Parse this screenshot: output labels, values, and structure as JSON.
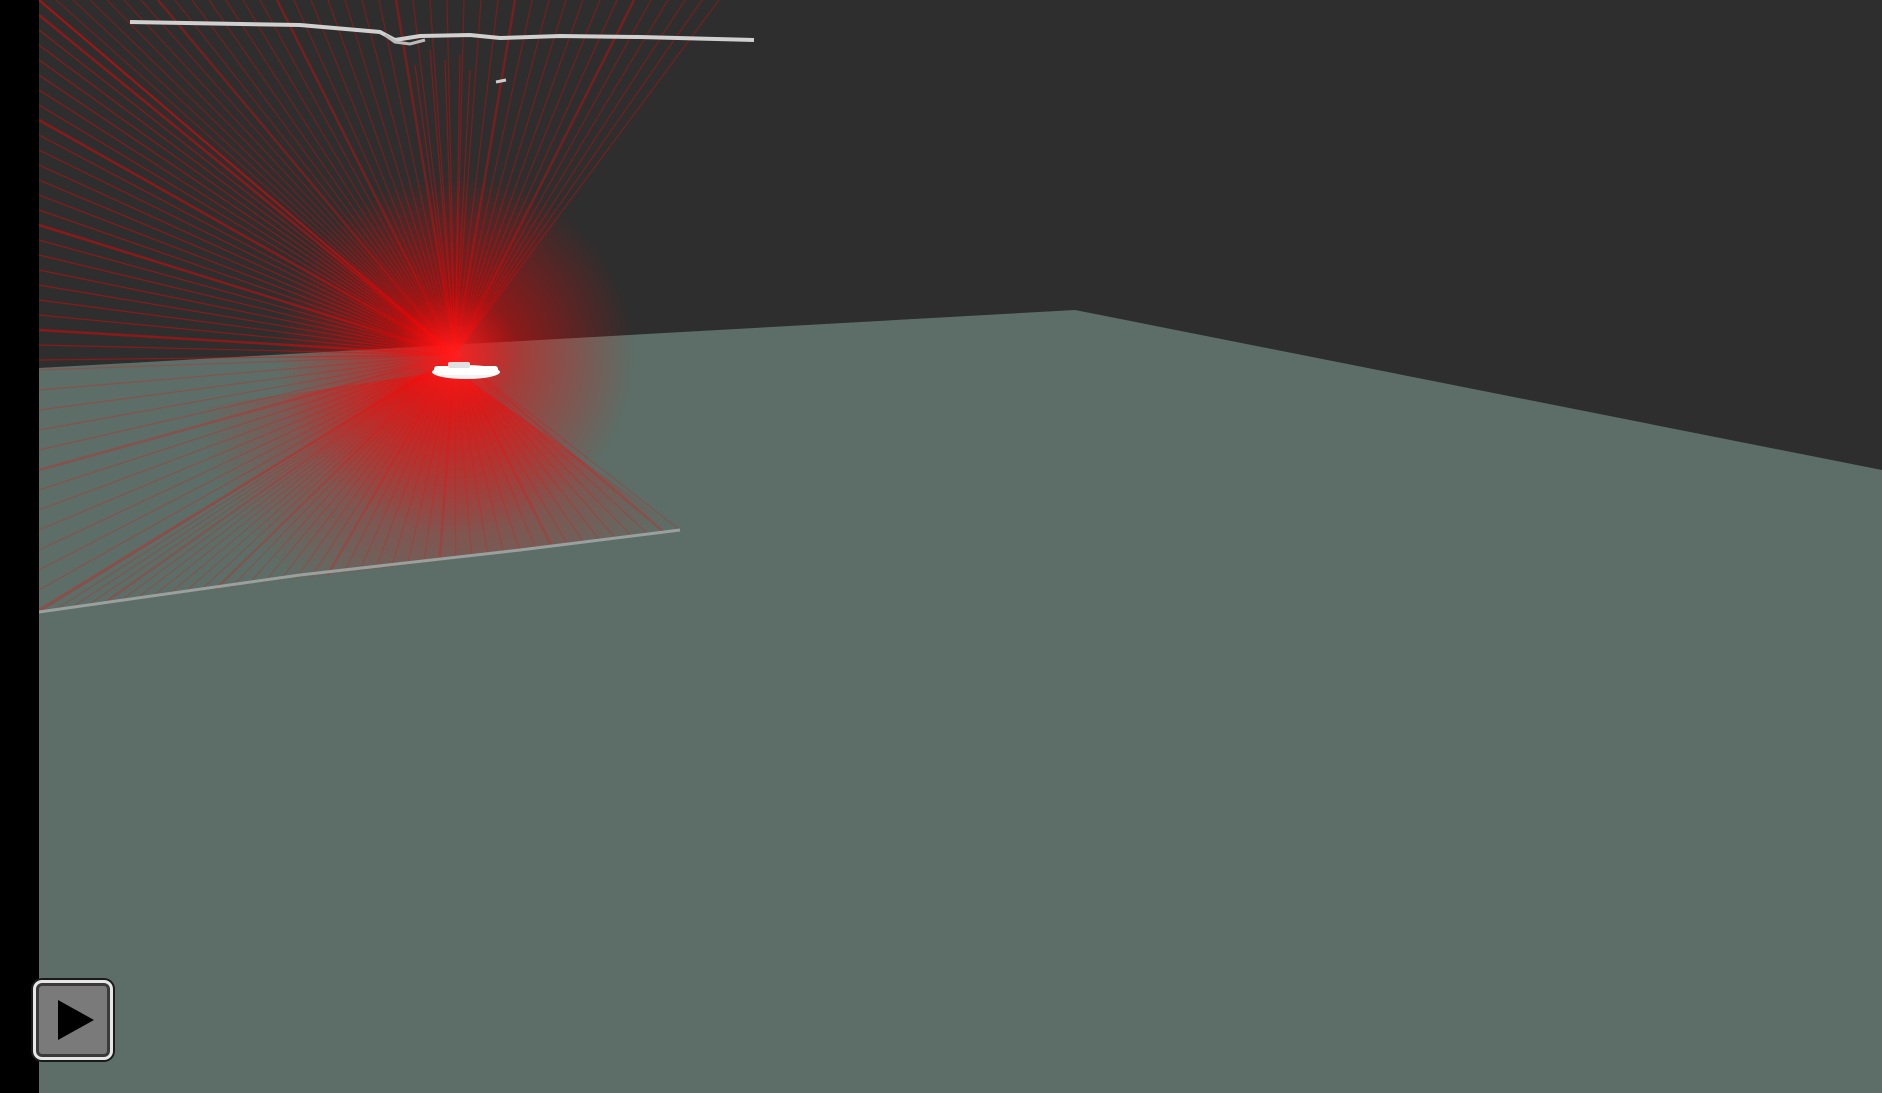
{
  "viewer": {
    "colors": {
      "background": "#2e2e2e",
      "ground_plane": "#5c6e67",
      "laser_beam": "#ff0000",
      "point_cloud": "#d8d8d8",
      "frame_border": "#000000"
    }
  },
  "controls": {
    "play_button": {
      "icon": "play-icon"
    }
  }
}
